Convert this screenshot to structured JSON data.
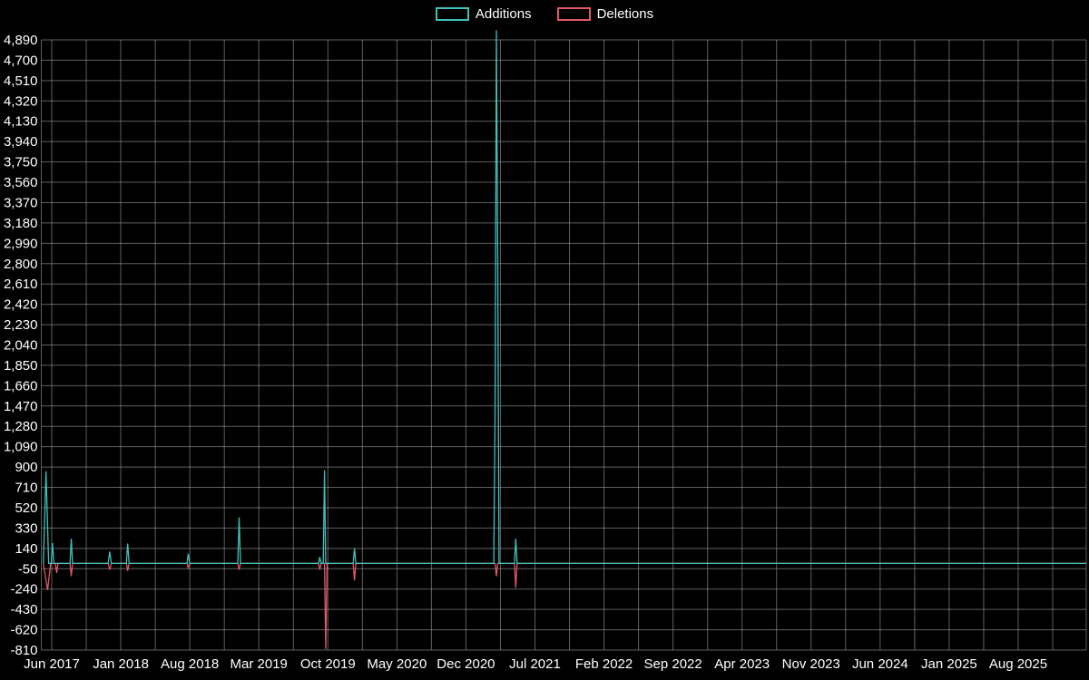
{
  "chart_data": {
    "type": "line",
    "title": "",
    "legend": [
      {
        "label": "Additions",
        "color": "#3fc1bd"
      },
      {
        "label": "Deletions",
        "color": "#e4566a"
      }
    ],
    "colors": {
      "background": "#000000",
      "text": "#ffffff",
      "grid": "#9f9f9f",
      "additions": "#3fc1bd",
      "deletions": "#e4566a"
    },
    "y_axis": {
      "min": -810,
      "max": 4890,
      "step": 190,
      "tick_labels": [
        "4,890",
        "4,700",
        "4,510",
        "4,320",
        "4,130",
        "3,940",
        "3,750",
        "3,560",
        "3,370",
        "3,180",
        "2,990",
        "2,800",
        "2,610",
        "2,420",
        "2,230",
        "2,040",
        "1,850",
        "1,660",
        "1,470",
        "1,280",
        "1,090",
        "900",
        "710",
        "520",
        "330",
        "140",
        "-50",
        "-240",
        "-430",
        "-620",
        "-810"
      ]
    },
    "x_axis": {
      "tick_labels": [
        "Jun 2017",
        "Jan 2018",
        "Aug 2018",
        "Mar 2019",
        "Oct 2019",
        "May 2020",
        "Dec 2020",
        "Jul 2021",
        "Feb 2022",
        "Sep 2022",
        "Apr 2023",
        "Nov 2023",
        "Jun 2024",
        "Jan 2025",
        "Aug 2025"
      ]
    },
    "grid": true,
    "legend_position": "top-center",
    "series": [
      {
        "name": "Additions",
        "color": "#3fc1bd",
        "points": [
          [
            0.002,
            0
          ],
          [
            0.0045,
            860
          ],
          [
            0.007,
            0
          ],
          [
            0.0095,
            0
          ],
          [
            0.0107,
            190
          ],
          [
            0.012,
            0
          ],
          [
            0.0275,
            0
          ],
          [
            0.0287,
            230
          ],
          [
            0.03,
            0
          ],
          [
            0.064,
            0
          ],
          [
            0.0655,
            110
          ],
          [
            0.067,
            0
          ],
          [
            0.0815,
            0
          ],
          [
            0.0827,
            185
          ],
          [
            0.084,
            0
          ],
          [
            0.1395,
            0
          ],
          [
            0.1407,
            90
          ],
          [
            0.142,
            0
          ],
          [
            0.188,
            0
          ],
          [
            0.1893,
            430
          ],
          [
            0.1906,
            0
          ],
          [
            0.2653,
            0
          ],
          [
            0.2665,
            60
          ],
          [
            0.2677,
            0
          ],
          [
            0.2698,
            0
          ],
          [
            0.271,
            870
          ],
          [
            0.2722,
            0
          ],
          [
            0.2985,
            0
          ],
          [
            0.2997,
            140
          ],
          [
            0.301,
            0
          ],
          [
            0.433,
            0
          ],
          [
            0.4342,
            1370
          ],
          [
            0.4355,
            4980
          ],
          [
            0.4368,
            2780
          ],
          [
            0.438,
            0
          ],
          [
            0.4528,
            0
          ],
          [
            0.454,
            230
          ],
          [
            0.4553,
            0
          ],
          [
            1.0,
            0
          ]
        ]
      },
      {
        "name": "Deletions",
        "color": "#e4566a",
        "points": [
          [
            0.002,
            0
          ],
          [
            0.006,
            -250
          ],
          [
            0.009,
            0
          ],
          [
            0.0135,
            0
          ],
          [
            0.0148,
            -90
          ],
          [
            0.016,
            0
          ],
          [
            0.0275,
            0
          ],
          [
            0.0287,
            -120
          ],
          [
            0.03,
            0
          ],
          [
            0.064,
            0
          ],
          [
            0.0655,
            -60
          ],
          [
            0.067,
            0
          ],
          [
            0.0815,
            0
          ],
          [
            0.0827,
            -70
          ],
          [
            0.084,
            0
          ],
          [
            0.1395,
            0
          ],
          [
            0.1407,
            -40
          ],
          [
            0.142,
            0
          ],
          [
            0.188,
            0
          ],
          [
            0.1893,
            -60
          ],
          [
            0.1906,
            0
          ],
          [
            0.2653,
            0
          ],
          [
            0.2665,
            -60
          ],
          [
            0.2677,
            0
          ],
          [
            0.271,
            0
          ],
          [
            0.2722,
            -800
          ],
          [
            0.2735,
            0
          ],
          [
            0.2985,
            0
          ],
          [
            0.2997,
            -160
          ],
          [
            0.301,
            0
          ],
          [
            0.4343,
            0
          ],
          [
            0.4355,
            -120
          ],
          [
            0.4368,
            0
          ],
          [
            0.4528,
            0
          ],
          [
            0.454,
            -230
          ],
          [
            0.4553,
            0
          ],
          [
            1.0,
            0
          ]
        ]
      }
    ]
  }
}
